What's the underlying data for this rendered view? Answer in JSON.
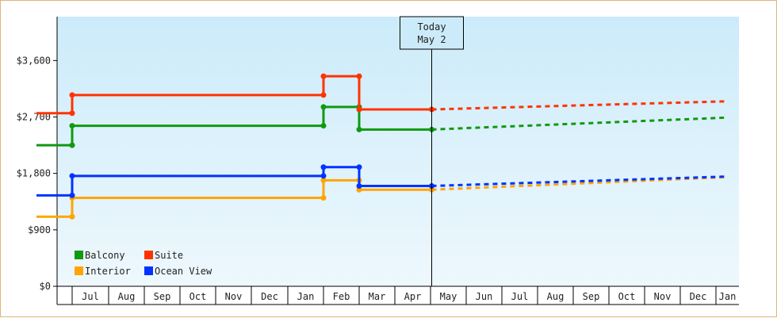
{
  "chart_data": {
    "type": "line",
    "y_ticks": [
      "$0",
      "$900",
      "$1,800",
      "$2,700",
      "$3,600"
    ],
    "ylim": [
      0,
      4300
    ],
    "x_months": [
      "Jul",
      "Aug",
      "Sep",
      "Oct",
      "Nov",
      "Dec",
      "Jan",
      "Feb",
      "Mar",
      "Apr",
      "May",
      "Jun",
      "Jul",
      "Aug",
      "Sep",
      "Oct",
      "Nov",
      "Dec",
      "Jan"
    ],
    "today": {
      "line1": "Today",
      "line2": "May 2",
      "x": "May 2"
    },
    "grid": false,
    "legend_position": "bottom-left",
    "series": [
      {
        "name": "Balcony",
        "color": "#119911",
        "points": [
          [
            "Jun 1",
            2250
          ],
          [
            "Jul 1",
            2250
          ],
          [
            "Jul 1",
            2560
          ],
          [
            "Feb 1",
            2560
          ],
          [
            "Feb 1",
            2860
          ],
          [
            "Mar 1",
            2860
          ],
          [
            "Mar 1",
            2500
          ],
          [
            "May 2",
            2500
          ]
        ],
        "forecast": [
          [
            "May 2",
            2500
          ],
          [
            "Jan 15",
            2690
          ]
        ]
      },
      {
        "name": "Suite",
        "color": "#ff3300",
        "points": [
          [
            "Jun 1",
            2760
          ],
          [
            "Jul 1",
            2760
          ],
          [
            "Jul 1",
            3050
          ],
          [
            "Feb 1",
            3050
          ],
          [
            "Feb 1",
            3350
          ],
          [
            "Mar 1",
            3350
          ],
          [
            "Mar 1",
            2820
          ],
          [
            "May 2",
            2820
          ]
        ],
        "forecast": [
          [
            "May 2",
            2820
          ],
          [
            "Jan 15",
            2950
          ]
        ]
      },
      {
        "name": "Interior",
        "color": "#ffa500",
        "points": [
          [
            "Jun 1",
            1110
          ],
          [
            "Jul 1",
            1110
          ],
          [
            "Jul 1",
            1410
          ],
          [
            "Feb 1",
            1410
          ],
          [
            "Feb 1",
            1690
          ],
          [
            "Mar 1",
            1690
          ],
          [
            "Mar 1",
            1540
          ],
          [
            "May 2",
            1540
          ]
        ],
        "forecast": [
          [
            "May 2",
            1540
          ],
          [
            "Jan 15",
            1740
          ]
        ]
      },
      {
        "name": "Ocean View",
        "color": "#0033ff",
        "points": [
          [
            "Jun 1",
            1450
          ],
          [
            "Jul 1",
            1450
          ],
          [
            "Jul 1",
            1760
          ],
          [
            "Feb 1",
            1760
          ],
          [
            "Feb 1",
            1900
          ],
          [
            "Mar 1",
            1900
          ],
          [
            "Mar 1",
            1600
          ],
          [
            "May 2",
            1600
          ]
        ],
        "forecast": [
          [
            "May 2",
            1600
          ],
          [
            "Jan 15",
            1750
          ]
        ]
      }
    ]
  }
}
